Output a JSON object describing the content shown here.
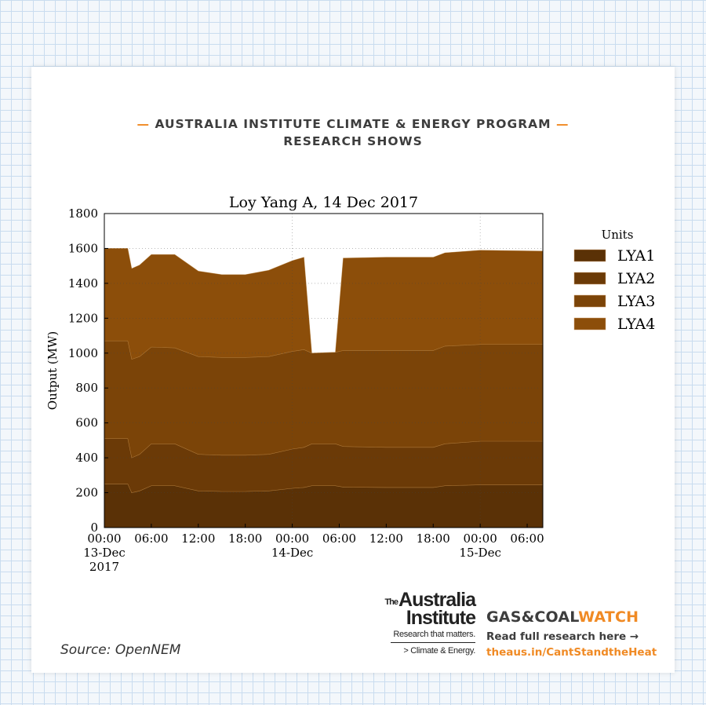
{
  "header": {
    "line1": "AUSTRALIA INSTITUTE CLIMATE & ENERGY PROGRAM",
    "line2": "RESEARCH SHOWS",
    "dash_left": "—",
    "dash_right": "—"
  },
  "source": "Source: OpenNEM",
  "ai_logo": {
    "the": "The",
    "name_line1": "Australia",
    "name_line2": "Institute",
    "tagline": "Research that matters.",
    "program": "> Climate & Energy."
  },
  "gcw": {
    "title_part1": "GAS&COAL",
    "title_part2": "WATCH",
    "read_more": "Read full research here →",
    "url": "theaus.in/CantStandtheHeat"
  },
  "colors": {
    "accent": "#f08a24",
    "LYA1": "#5a3106",
    "LYA2": "#6b3a07",
    "LYA3": "#7b4408",
    "LYA4": "#8c4e0a"
  },
  "chart_data": {
    "type": "area",
    "stacked": true,
    "title": "Loy Yang A, 14 Dec 2017",
    "xlabel": "",
    "ylabel": "Output (MW)",
    "ylim": [
      0,
      1800
    ],
    "yticks": [
      0,
      200,
      400,
      600,
      800,
      1000,
      1200,
      1400,
      1600,
      1800
    ],
    "xlim": [
      "2017-12-13 00:00",
      "2017-12-15 08:00"
    ],
    "x_ticks": [
      {
        "x": "2017-12-13 00:00",
        "line1": "00:00",
        "line2": "13-Dec",
        "line3": "2017"
      },
      {
        "x": "2017-12-13 06:00",
        "line1": "06:00",
        "line2": "",
        "line3": ""
      },
      {
        "x": "2017-12-13 12:00",
        "line1": "12:00",
        "line2": "",
        "line3": ""
      },
      {
        "x": "2017-12-13 18:00",
        "line1": "18:00",
        "line2": "",
        "line3": ""
      },
      {
        "x": "2017-12-14 00:00",
        "line1": "00:00",
        "line2": "14-Dec",
        "line3": ""
      },
      {
        "x": "2017-12-14 06:00",
        "line1": "06:00",
        "line2": "",
        "line3": ""
      },
      {
        "x": "2017-12-14 12:00",
        "line1": "12:00",
        "line2": "",
        "line3": ""
      },
      {
        "x": "2017-12-14 18:00",
        "line1": "18:00",
        "line2": "",
        "line3": ""
      },
      {
        "x": "2017-12-15 00:00",
        "line1": "00:00",
        "line2": "15-Dec",
        "line3": ""
      },
      {
        "x": "2017-12-15 06:00",
        "line1": "06:00",
        "line2": "",
        "line3": ""
      }
    ],
    "grid": true,
    "legend_title": "Units",
    "legend_position": "right",
    "series": [
      {
        "name": "LYA1",
        "points": [
          [
            "2017-12-13 00:00",
            250
          ],
          [
            "2017-12-13 03:00",
            250
          ],
          [
            "2017-12-13 03:30",
            200
          ],
          [
            "2017-12-13 04:30",
            210
          ],
          [
            "2017-12-13 06:00",
            240
          ],
          [
            "2017-12-13 09:00",
            240
          ],
          [
            "2017-12-13 12:00",
            210
          ],
          [
            "2017-12-13 15:00",
            207
          ],
          [
            "2017-12-13 18:00",
            207
          ],
          [
            "2017-12-13 21:00",
            210
          ],
          [
            "2017-12-14 00:00",
            225
          ],
          [
            "2017-12-14 01:30",
            230
          ],
          [
            "2017-12-14 02:30",
            240
          ],
          [
            "2017-12-14 05:30",
            240
          ],
          [
            "2017-12-14 06:30",
            232
          ],
          [
            "2017-12-14 12:00",
            230
          ],
          [
            "2017-12-14 18:00",
            230
          ],
          [
            "2017-12-14 19:30",
            240
          ],
          [
            "2017-12-15 00:00",
            245
          ],
          [
            "2017-12-15 08:00",
            245
          ]
        ]
      },
      {
        "name": "LYA2",
        "points": [
          [
            "2017-12-13 00:00",
            260
          ],
          [
            "2017-12-13 03:00",
            260
          ],
          [
            "2017-12-13 03:30",
            200
          ],
          [
            "2017-12-13 04:30",
            210
          ],
          [
            "2017-12-13 06:00",
            240
          ],
          [
            "2017-12-13 09:00",
            240
          ],
          [
            "2017-12-13 12:00",
            210
          ],
          [
            "2017-12-13 15:00",
            208
          ],
          [
            "2017-12-13 18:00",
            208
          ],
          [
            "2017-12-13 21:00",
            210
          ],
          [
            "2017-12-14 00:00",
            225
          ],
          [
            "2017-12-14 01:30",
            230
          ],
          [
            "2017-12-14 02:30",
            240
          ],
          [
            "2017-12-14 05:30",
            240
          ],
          [
            "2017-12-14 06:30",
            233
          ],
          [
            "2017-12-14 12:00",
            230
          ],
          [
            "2017-12-14 18:00",
            230
          ],
          [
            "2017-12-14 19:30",
            240
          ],
          [
            "2017-12-15 00:00",
            250
          ],
          [
            "2017-12-15 08:00",
            250
          ]
        ]
      },
      {
        "name": "LYA3",
        "points": [
          [
            "2017-12-13 00:00",
            560
          ],
          [
            "2017-12-13 03:00",
            560
          ],
          [
            "2017-12-13 03:30",
            565
          ],
          [
            "2017-12-13 04:30",
            560
          ],
          [
            "2017-12-13 06:00",
            555
          ],
          [
            "2017-12-13 09:00",
            550
          ],
          [
            "2017-12-13 12:00",
            560
          ],
          [
            "2017-12-13 15:00",
            560
          ],
          [
            "2017-12-13 18:00",
            560
          ],
          [
            "2017-12-13 21:00",
            560
          ],
          [
            "2017-12-14 00:00",
            560
          ],
          [
            "2017-12-14 01:30",
            560
          ],
          [
            "2017-12-14 02:30",
            520
          ],
          [
            "2017-12-14 05:30",
            525
          ],
          [
            "2017-12-14 06:30",
            550
          ],
          [
            "2017-12-14 12:00",
            555
          ],
          [
            "2017-12-14 18:00",
            555
          ],
          [
            "2017-12-14 19:30",
            560
          ],
          [
            "2017-12-15 00:00",
            555
          ],
          [
            "2017-12-15 08:00",
            555
          ]
        ]
      },
      {
        "name": "LYA4",
        "points": [
          [
            "2017-12-13 00:00",
            530
          ],
          [
            "2017-12-13 03:00",
            530
          ],
          [
            "2017-12-13 03:30",
            520
          ],
          [
            "2017-12-13 04:30",
            525
          ],
          [
            "2017-12-13 06:00",
            530
          ],
          [
            "2017-12-13 09:00",
            535
          ],
          [
            "2017-12-13 12:00",
            490
          ],
          [
            "2017-12-13 15:00",
            475
          ],
          [
            "2017-12-13 18:00",
            475
          ],
          [
            "2017-12-13 21:00",
            495
          ],
          [
            "2017-12-14 00:00",
            520
          ],
          [
            "2017-12-14 01:30",
            530
          ],
          [
            "2017-12-14 02:30",
            0
          ],
          [
            "2017-12-14 05:30",
            0
          ],
          [
            "2017-12-14 06:30",
            530
          ],
          [
            "2017-12-14 12:00",
            535
          ],
          [
            "2017-12-14 18:00",
            535
          ],
          [
            "2017-12-14 19:30",
            535
          ],
          [
            "2017-12-15 00:00",
            540
          ],
          [
            "2017-12-15 08:00",
            535
          ]
        ]
      }
    ]
  }
}
